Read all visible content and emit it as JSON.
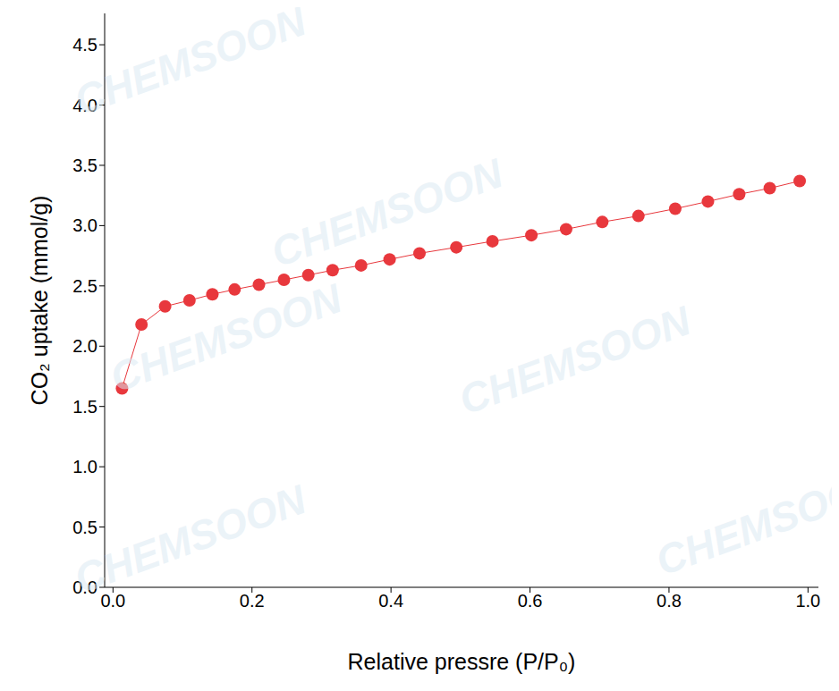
{
  "chart_data": {
    "type": "line",
    "x_label": "Relative pressre (P/P₀)",
    "y_label": "CO₂ uptake (mmol/g)",
    "watermark": "CHEMSOON",
    "x": [
      0.013,
      0.041,
      0.075,
      0.11,
      0.143,
      0.175,
      0.21,
      0.246,
      0.281,
      0.316,
      0.357,
      0.398,
      0.441,
      0.494,
      0.546,
      0.602,
      0.652,
      0.704,
      0.756,
      0.809,
      0.856,
      0.901,
      0.945,
      0.988
    ],
    "values": [
      1.65,
      2.18,
      2.33,
      2.38,
      2.43,
      2.47,
      2.51,
      2.55,
      2.59,
      2.63,
      2.67,
      2.72,
      2.77,
      2.82,
      2.87,
      2.92,
      2.97,
      3.03,
      3.08,
      3.14,
      3.2,
      3.26,
      3.31,
      3.37
    ],
    "color": "#e8383d",
    "marker": "circle",
    "line_style": "solid",
    "grid": false,
    "xlim": [
      -0.012,
      1.015
    ],
    "ylim": [
      0,
      4.76
    ],
    "xticks": [
      {
        "value": 0,
        "label": "0.0"
      },
      0.2,
      0.4,
      0.6,
      0.8,
      {
        "value": 1,
        "label": "1.0"
      }
    ],
    "yticks": [
      {
        "value": 0,
        "label": "0.0"
      },
      0.5,
      {
        "value": 1,
        "label": "1.0"
      },
      1.5,
      {
        "value": 2,
        "label": "2.0"
      },
      2.5,
      {
        "value": 3,
        "label": "3.0"
      },
      3.5,
      {
        "value": 4,
        "label": "4.0"
      },
      4.5
    ]
  }
}
